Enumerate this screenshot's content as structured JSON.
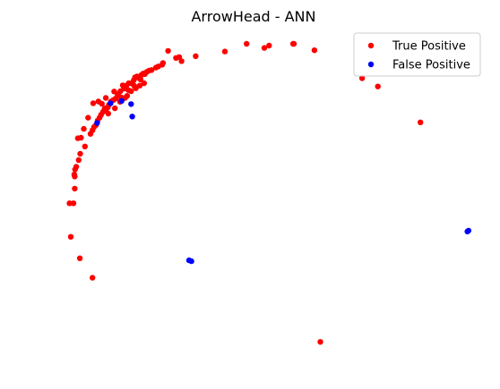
{
  "chart_data": {
    "type": "scatter",
    "title": "ArrowHead - ANN",
    "xlabel": "",
    "ylabel": "",
    "grid": false,
    "axes_visible": false,
    "legend_position": "top-right",
    "xlim": [
      0,
      100
    ],
    "ylim": [
      0,
      100
    ],
    "series": [
      {
        "name": "True Positive",
        "color": "#ff0000",
        "points": [
          [
            45.5,
            100
          ],
          [
            50,
            98.6
          ],
          [
            51.2,
            99.4
          ],
          [
            57.5,
            100
          ],
          [
            57.3,
            100
          ],
          [
            62.7,
            97.8
          ],
          [
            40,
            97.4
          ],
          [
            32.6,
            95.8
          ],
          [
            29,
            94.1
          ],
          [
            24.1,
            92.9
          ],
          [
            24.3,
            93.5
          ],
          [
            27.6,
            95.2
          ],
          [
            28.4,
            95.5
          ],
          [
            20.2,
            90.5
          ],
          [
            20.8,
            90.9
          ],
          [
            19.7,
            89.7
          ],
          [
            19.3,
            89.9
          ],
          [
            18.8,
            89.4
          ],
          [
            18.1,
            88.5
          ],
          [
            17.7,
            88.9
          ],
          [
            16.9,
            87.7
          ],
          [
            16.3,
            86.6
          ],
          [
            15.6,
            86.6
          ],
          [
            15,
            85.8
          ],
          [
            14.4,
            84.8
          ],
          [
            13.5,
            83.9
          ],
          [
            13,
            82.3
          ],
          [
            12.8,
            82.8
          ],
          [
            12.3,
            81.4
          ],
          [
            11.7,
            80.9
          ],
          [
            11.1,
            80.4
          ],
          [
            10.6,
            79.3
          ],
          [
            10.3,
            78.4
          ],
          [
            9.8,
            77.6
          ],
          [
            9.5,
            77.9
          ],
          [
            9.1,
            76.9
          ],
          [
            8.6,
            75.9
          ],
          [
            8.2,
            74.9
          ],
          [
            7.7,
            73.9
          ],
          [
            7.3,
            72.4
          ],
          [
            6.8,
            71.7
          ],
          [
            6.4,
            70.6
          ],
          [
            5.9,
            69.4
          ],
          [
            4.5,
            65.1
          ],
          [
            3.3,
            62.6
          ],
          [
            2.9,
            60.5
          ],
          [
            2,
            57.3
          ],
          [
            2.3,
            58.2
          ],
          [
            1.8,
            55.6
          ],
          [
            1.9,
            54.9
          ],
          [
            1.9,
            50.8
          ],
          [
            0.6,
            45.8
          ],
          [
            1.6,
            45.8
          ],
          [
            0.9,
            34.4
          ],
          [
            3.2,
            27.1
          ],
          [
            6.4,
            20.5
          ],
          [
            25.6,
            97.6
          ],
          [
            74.8,
            88.3
          ],
          [
            78.8,
            85.5
          ],
          [
            89.6,
            73.3
          ],
          [
            64.2,
            -1.3
          ],
          [
            19.5,
            86.6
          ],
          [
            18.4,
            85.8
          ],
          [
            13.7,
            81.8
          ],
          [
            13.4,
            80.3
          ],
          [
            12.1,
            78.1
          ],
          [
            10.4,
            76.3
          ],
          [
            9.6,
            78.1
          ],
          [
            8.8,
            79.6
          ],
          [
            7.9,
            80.4
          ],
          [
            6.6,
            79.8
          ],
          [
            5.3,
            74.9
          ],
          [
            4.2,
            71.1
          ],
          [
            3.5,
            68.1
          ],
          [
            2.7,
            67.9
          ],
          [
            14.7,
            81.6
          ],
          [
            15.5,
            84.3
          ],
          [
            16.2,
            83.9
          ],
          [
            17,
            85.7
          ],
          [
            21.4,
            91.1
          ],
          [
            22.5,
            91.9
          ],
          [
            23.1,
            92.3
          ],
          [
            17.4,
            84.9
          ],
          [
            18.6,
            87.9
          ],
          [
            15.2,
            82.3
          ],
          [
            9.8,
            81.6
          ],
          [
            11.9,
            83.8
          ],
          [
            14.1,
            85.9
          ],
          [
            16.6,
            86.4
          ],
          [
            17.2,
            88.6
          ]
        ]
      },
      {
        "name": "False Positive",
        "color": "#0000ff",
        "points": [
          [
            7.6,
            73.1
          ],
          [
            11,
            79.8
          ],
          [
            13.8,
            80.6
          ],
          [
            16.2,
            79.5
          ],
          [
            16.5,
            75.3
          ],
          [
            30.9,
            26.4
          ],
          [
            31.5,
            26.1
          ],
          [
            101.5,
            36.2
          ],
          [
            101.8,
            36.5
          ]
        ]
      }
    ]
  }
}
